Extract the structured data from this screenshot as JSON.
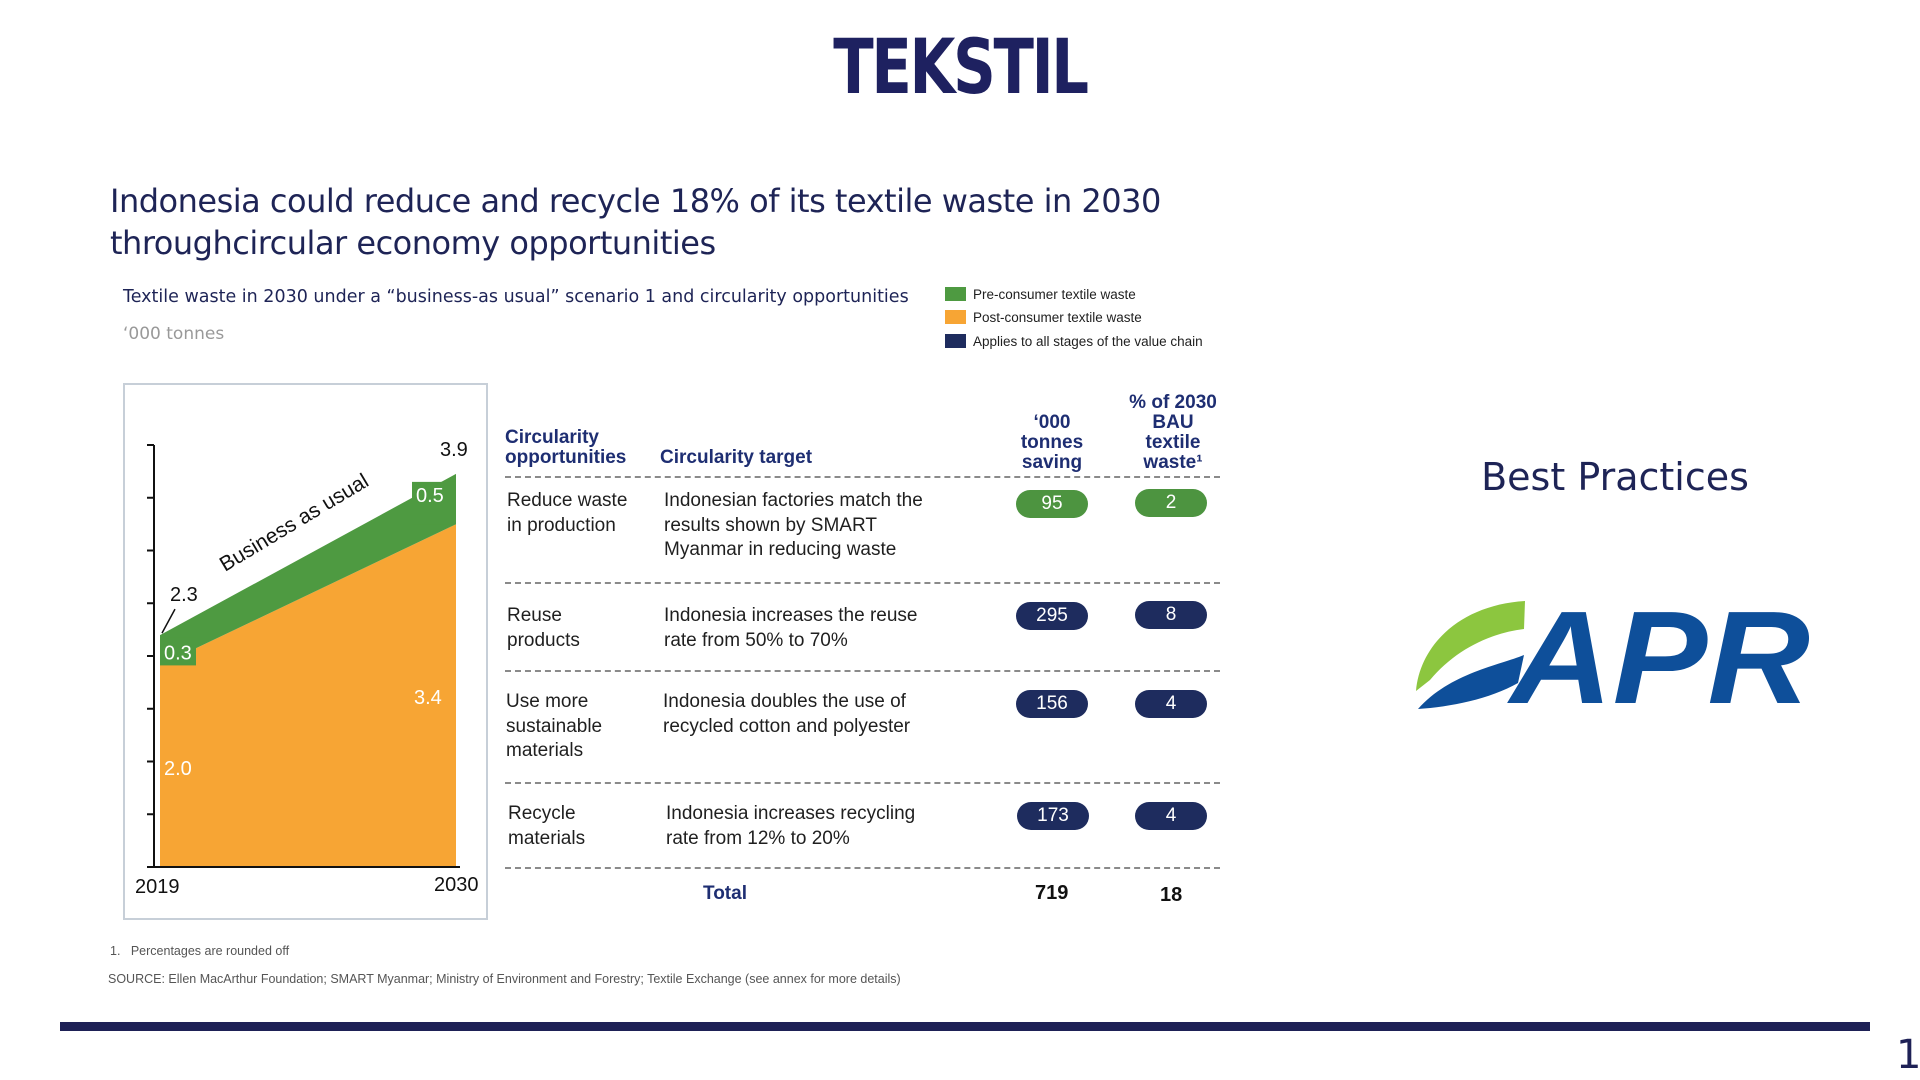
{
  "slide": {
    "title": "TEKSTIL",
    "headline_line1": "Indonesia could reduce and recycle 18% of its textile waste in 2030",
    "headline_line2": "throughcircular economy opportunities",
    "subtitle": "Textile waste in 2030 under a “business-as usual” scenario 1 and circularity opportunities",
    "units": "‘000 tonnes",
    "page_number": "1"
  },
  "legend": [
    {
      "label": "Pre-consumer textile waste",
      "color": "#4e9a41"
    },
    {
      "label": "Post-consumer textile waste",
      "color": "#f7a534"
    },
    {
      "label": "Applies to all stages of the value chain",
      "color": "#1e2c5e"
    }
  ],
  "chart_data": [
    {
      "type": "area",
      "x": [
        "2019",
        "2030"
      ],
      "series": [
        {
          "name": "Post-consumer textile waste",
          "values": [
            2.0,
            3.4
          ],
          "color": "#f7a534"
        },
        {
          "name": "Pre-consumer textile waste",
          "values": [
            0.3,
            0.5
          ],
          "color": "#4e9a41"
        }
      ],
      "totals": [
        2.3,
        3.9
      ],
      "data_labels": {
        "series_0": [
          "2.0",
          "3.4"
        ],
        "series_1": [
          "0.3",
          "0.5"
        ],
        "totals": [
          "2.3",
          "3.9"
        ]
      },
      "annotation": "Business as usual",
      "ylim": [
        0,
        4.0
      ],
      "grid": false
    },
    {
      "type": "table",
      "columns": [
        "Circularity opportunities",
        "Circularity target",
        "‘000 tonnes saving",
        "% of 2030 BAU textile waste¹"
      ],
      "rows": [
        {
          "opportunity": [
            "Reduce waste",
            "in production"
          ],
          "target": [
            "Indonesian factories match the",
            "results shown by SMART",
            "Myanmar in reducing waste"
          ],
          "saving": "95",
          "percent": "2",
          "pill_color": "green"
        },
        {
          "opportunity": [
            "Reuse",
            "products"
          ],
          "target": [
            "Indonesia increases the reuse",
            "rate from 50% to 70%"
          ],
          "saving": "295",
          "percent": "8",
          "pill_color": "navy"
        },
        {
          "opportunity": [
            "Use more",
            "sustainable",
            "materials"
          ],
          "target": [
            "Indonesia doubles the use of",
            "recycled cotton and polyester"
          ],
          "saving": "156",
          "percent": "4",
          "pill_color": "navy"
        },
        {
          "opportunity": [
            "Recycle",
            "materials"
          ],
          "target": [
            "Indonesia increases recycling",
            "rate from 12% to 20%"
          ],
          "saving": "173",
          "percent": "4",
          "pill_color": "navy"
        }
      ],
      "total": {
        "label": "Total",
        "saving": "719",
        "percent": "18"
      }
    }
  ],
  "table_headers": {
    "opportunities": [
      "Circularity",
      "opportunities"
    ],
    "target": "Circularity target",
    "saving": [
      "‘000",
      "tonnes",
      "saving"
    ],
    "percent": [
      "% of 2030",
      "BAU",
      "textile",
      "waste¹"
    ]
  },
  "footnote": "1.   Percentages are rounded off",
  "source": "SOURCE: Ellen MacArthur Foundation; SMART Myanmar; Ministry of Environment and Forestry; Textile Exchange (see annex for more details)",
  "best_practices": "Best Practices",
  "logo": {
    "text": "APR",
    "colors": {
      "text": "#0e4f9a",
      "leaf_top": "#8cc63f",
      "leaf_bottom": "#0e4f9a"
    }
  }
}
